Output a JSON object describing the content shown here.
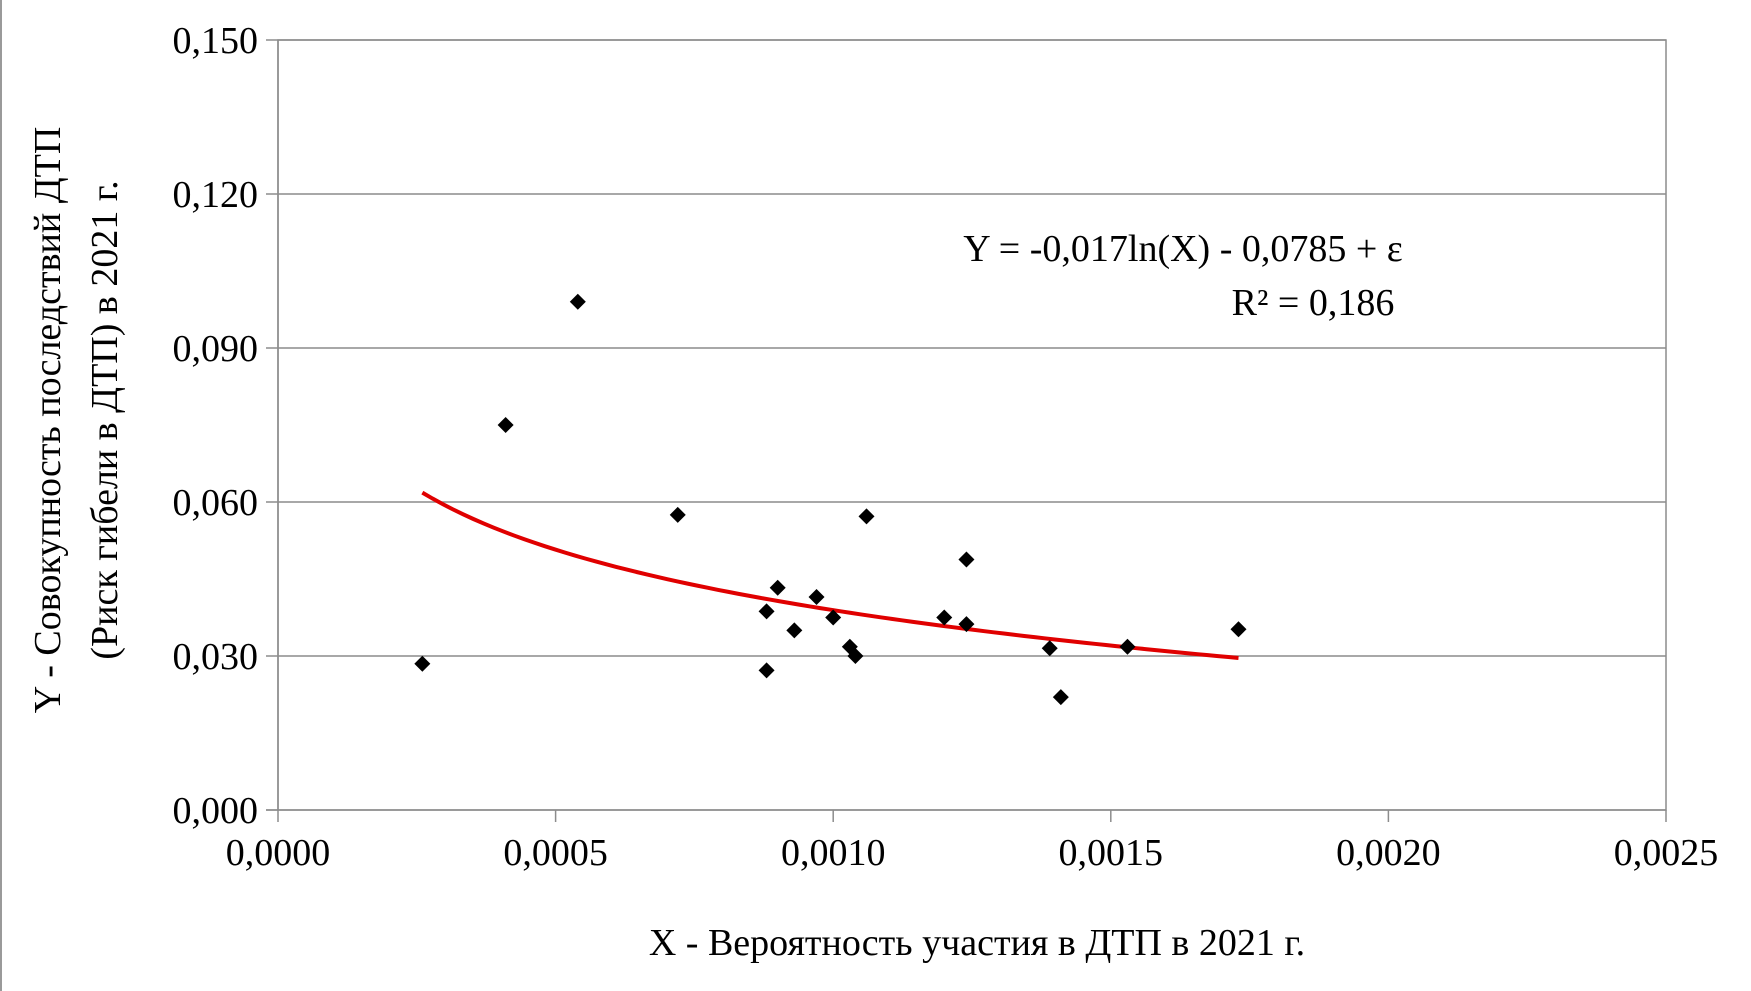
{
  "chart_data": {
    "type": "scatter",
    "xlabel": "X - Вероятность участия в ДТП в 2021   г.",
    "ylabel_lines": [
      "Y - Совокупность последствий ДТП",
      "(Риск гибели в ДТП) в 2021  г."
    ],
    "xlim": [
      0,
      0.0025
    ],
    "ylim": [
      0,
      0.15
    ],
    "x_ticks": [
      "0,0000",
      "0,0005",
      "0,0010",
      "0,0015",
      "0,0020",
      "0,0025"
    ],
    "x_tick_values": [
      0,
      0.0005,
      0.001,
      0.0015,
      0.002,
      0.0025
    ],
    "y_ticks": [
      "0,000",
      "0,030",
      "0,060",
      "0,090",
      "0,120",
      "0,150"
    ],
    "y_tick_values": [
      0,
      0.03,
      0.06,
      0.09,
      0.12,
      0.15
    ],
    "grid": "horizontal",
    "points": [
      {
        "x": 0.00026,
        "y": 0.0285
      },
      {
        "x": 0.00041,
        "y": 0.075
      },
      {
        "x": 0.00054,
        "y": 0.099
      },
      {
        "x": 0.00072,
        "y": 0.0575
      },
      {
        "x": 0.00088,
        "y": 0.0272
      },
      {
        "x": 0.00088,
        "y": 0.0387
      },
      {
        "x": 0.0009,
        "y": 0.0433
      },
      {
        "x": 0.00093,
        "y": 0.035
      },
      {
        "x": 0.00097,
        "y": 0.0415
      },
      {
        "x": 0.001,
        "y": 0.0375
      },
      {
        "x": 0.00103,
        "y": 0.0318
      },
      {
        "x": 0.00104,
        "y": 0.03
      },
      {
        "x": 0.00106,
        "y": 0.0572
      },
      {
        "x": 0.0012,
        "y": 0.0375
      },
      {
        "x": 0.00124,
        "y": 0.0488
      },
      {
        "x": 0.00124,
        "y": 0.0362
      },
      {
        "x": 0.00139,
        "y": 0.0315
      },
      {
        "x": 0.00141,
        "y": 0.022
      },
      {
        "x": 0.00153,
        "y": 0.0318
      },
      {
        "x": 0.00173,
        "y": 0.0352
      }
    ],
    "trendline": {
      "type": "logarithmic",
      "a": -0.017,
      "b": -0.0785,
      "x_range": [
        0.00026,
        0.00173
      ],
      "color": "#e00000"
    },
    "annotations": {
      "equation": "Y = -0,017ln(X)  - 0,0785  + ε",
      "r2": "R² = 0,186"
    },
    "point_marker": "diamond",
    "point_color": "#000000"
  }
}
